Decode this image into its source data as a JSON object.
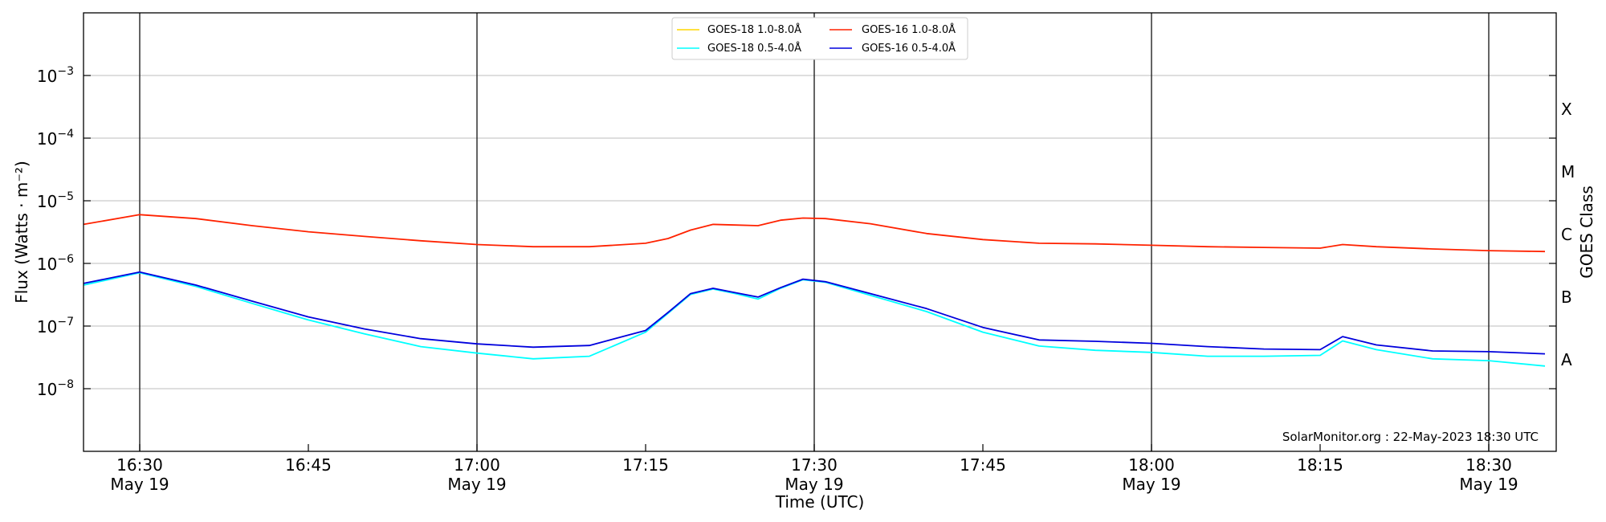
{
  "chart_data": {
    "type": "line",
    "xlabel": "Time (UTC)",
    "ylabel": "Flux (Watts · m⁻²)",
    "y2label": "GOES Class",
    "yscale": "log",
    "ylim": [
      1e-09,
      0.01
    ],
    "xlim": [
      "16:25",
      "18:36"
    ],
    "grid": "horizontal",
    "legend_position": "top-center",
    "x_ticks": [
      {
        "t": "16:30",
        "date": "May 19"
      },
      {
        "t": "16:45",
        "date": ""
      },
      {
        "t": "17:00",
        "date": "May 19"
      },
      {
        "t": "17:15",
        "date": ""
      },
      {
        "t": "17:30",
        "date": "May 19"
      },
      {
        "t": "17:45",
        "date": ""
      },
      {
        "t": "18:00",
        "date": "May 19"
      },
      {
        "t": "18:15",
        "date": ""
      },
      {
        "t": "18:30",
        "date": "May 19"
      }
    ],
    "y_ticks": [
      {
        "value": 1e-08,
        "base": "10",
        "exp": "−8"
      },
      {
        "value": 1e-07,
        "base": "10",
        "exp": "−7"
      },
      {
        "value": 1e-06,
        "base": "10",
        "exp": "−6"
      },
      {
        "value": 1e-05,
        "base": "10",
        "exp": "−5"
      },
      {
        "value": 0.0001,
        "base": "10",
        "exp": "−4"
      },
      {
        "value": 0.001,
        "base": "10",
        "exp": "−3"
      }
    ],
    "goes_classes": [
      {
        "label": "A",
        "value": 3e-08
      },
      {
        "label": "B",
        "value": 3e-07
      },
      {
        "label": "C",
        "value": 3e-06
      },
      {
        "label": "M",
        "value": 3e-05
      },
      {
        "label": "X",
        "value": 0.0003
      }
    ],
    "vertical_markers": [
      "16:30",
      "17:00",
      "17:30",
      "18:00",
      "18:30"
    ],
    "credit": "SolarMonitor.org : 22-May-2023 18:30 UTC",
    "x_times": [
      "16:25",
      "16:30",
      "16:35",
      "16:40",
      "16:45",
      "16:50",
      "16:55",
      "17:00",
      "17:05",
      "17:10",
      "17:15",
      "17:17",
      "17:19",
      "17:21",
      "17:23",
      "17:25",
      "17:27",
      "17:29",
      "17:31",
      "17:35",
      "17:40",
      "17:45",
      "17:50",
      "17:55",
      "18:00",
      "18:05",
      "18:10",
      "18:15",
      "18:17",
      "18:20",
      "18:25",
      "18:30",
      "18:35"
    ],
    "series": [
      {
        "name": "GOES-18 1.0-8.0Å",
        "color": "#ffd700",
        "values": []
      },
      {
        "name": "GOES-18 0.5-4.0Å",
        "color": "#00ffff",
        "values": [
          4.5e-07,
          7.1e-07,
          4.3e-07,
          2.3e-07,
          1.25e-07,
          7.5e-08,
          4.7e-08,
          3.7e-08,
          3e-08,
          3.3e-08,
          8e-08,
          1.6e-07,
          3.2e-07,
          3.9e-07,
          3.3e-07,
          2.7e-07,
          4e-07,
          5.5e-07,
          5e-07,
          3.1e-07,
          1.7e-07,
          8e-08,
          4.8e-08,
          4.1e-08,
          3.8e-08,
          3.3e-08,
          3.3e-08,
          3.4e-08,
          5.8e-08,
          4.2e-08,
          3e-08,
          2.8e-08,
          2.3e-08
        ]
      },
      {
        "name": "GOES-16 1.0-8.0Å",
        "color": "#ff2200",
        "values": [
          4.2e-06,
          6e-06,
          5.2e-06,
          4e-06,
          3.2e-06,
          2.7e-06,
          2.3e-06,
          2e-06,
          1.85e-06,
          1.85e-06,
          2.1e-06,
          2.5e-06,
          3.4e-06,
          4.2e-06,
          4.1e-06,
          4e-06,
          4.9e-06,
          5.3e-06,
          5.2e-06,
          4.3e-06,
          3e-06,
          2.4e-06,
          2.1e-06,
          2.05e-06,
          1.95e-06,
          1.85e-06,
          1.8e-06,
          1.75e-06,
          2e-06,
          1.85e-06,
          1.7e-06,
          1.6e-06,
          1.55e-06
        ]
      },
      {
        "name": "GOES-16 0.5-4.0Å",
        "color": "#0000dd",
        "values": [
          4.8e-07,
          7.3e-07,
          4.5e-07,
          2.5e-07,
          1.4e-07,
          9e-08,
          6.3e-08,
          5.2e-08,
          4.6e-08,
          4.9e-08,
          8.5e-08,
          1.65e-07,
          3.3e-07,
          4e-07,
          3.4e-07,
          2.9e-07,
          4.1e-07,
          5.6e-07,
          5.1e-07,
          3.3e-07,
          1.9e-07,
          9.5e-08,
          6e-08,
          5.7e-08,
          5.3e-08,
          4.7e-08,
          4.3e-08,
          4.2e-08,
          6.8e-08,
          5e-08,
          4e-08,
          3.9e-08,
          3.6e-08
        ]
      }
    ]
  }
}
